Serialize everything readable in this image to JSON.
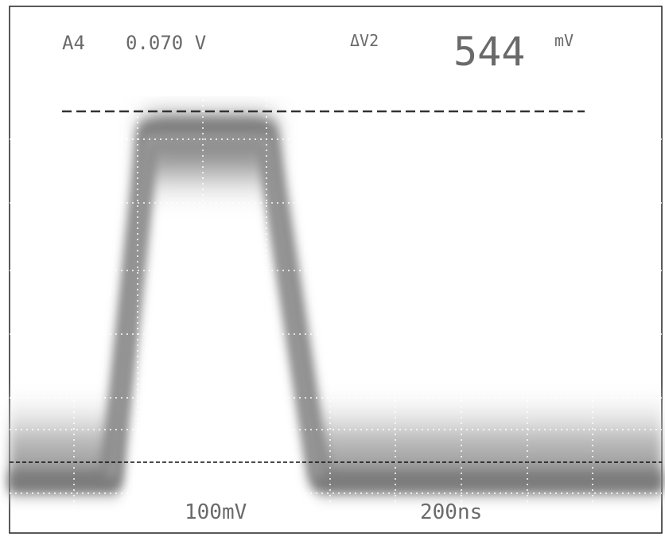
{
  "readout": {
    "channel": "A4",
    "level": "0.070 V",
    "delta_label": "ΔV2",
    "delta_value": "544",
    "delta_unit": "mV"
  },
  "scale": {
    "volts_per_div": "100mV",
    "time_per_div": "200ns"
  }
}
